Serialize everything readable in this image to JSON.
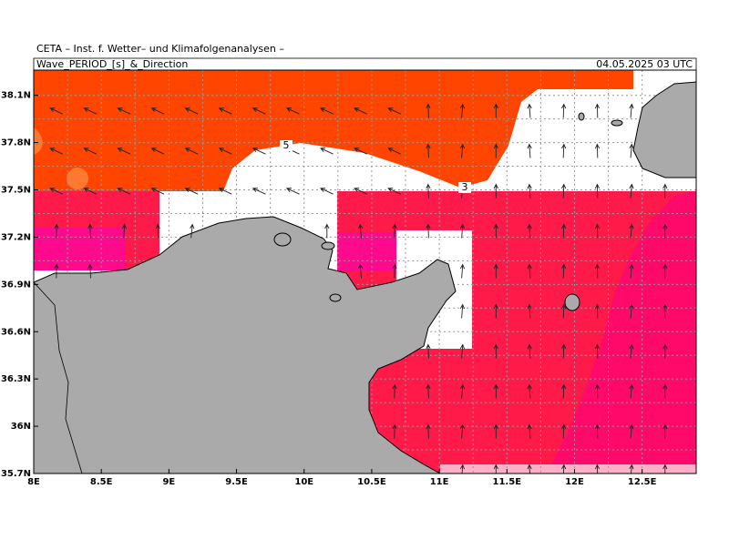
{
  "header": {
    "institute": "CETA – Inst. f. Wetter– und Klimafolgenanalysen –",
    "title": "Wave_PERIOD_[s]_&_Direction",
    "valid_time": "04.05.2025 03 UTC"
  },
  "map": {
    "xlim": [
      8,
      12.9
    ],
    "ylim": [
      35.7,
      38.26
    ],
    "xticks": [
      {
        "value": 8,
        "label": "8E"
      },
      {
        "value": 8.5,
        "label": "8.5E"
      },
      {
        "value": 9,
        "label": "9E"
      },
      {
        "value": 9.5,
        "label": "9.5E"
      },
      {
        "value": 10,
        "label": "10E"
      },
      {
        "value": 10.5,
        "label": "10.5E"
      },
      {
        "value": 11,
        "label": "11E"
      },
      {
        "value": 11.5,
        "label": "11.5E"
      },
      {
        "value": 12,
        "label": "12E"
      },
      {
        "value": 12.5,
        "label": "12.5E"
      }
    ],
    "yticks": [
      {
        "value": 35.7,
        "label": "35.7N"
      },
      {
        "value": 36,
        "label": "36N"
      },
      {
        "value": 36.3,
        "label": "36.3N"
      },
      {
        "value": 36.6,
        "label": "36.6N"
      },
      {
        "value": 36.9,
        "label": "36.9N"
      },
      {
        "value": 37.2,
        "label": "37.2N"
      },
      {
        "value": 37.5,
        "label": "37.5N"
      },
      {
        "value": 37.8,
        "label": "37.8N"
      },
      {
        "value": 38.1,
        "label": "38.1N"
      }
    ],
    "contour_labels": [
      5,
      3
    ]
  }
}
